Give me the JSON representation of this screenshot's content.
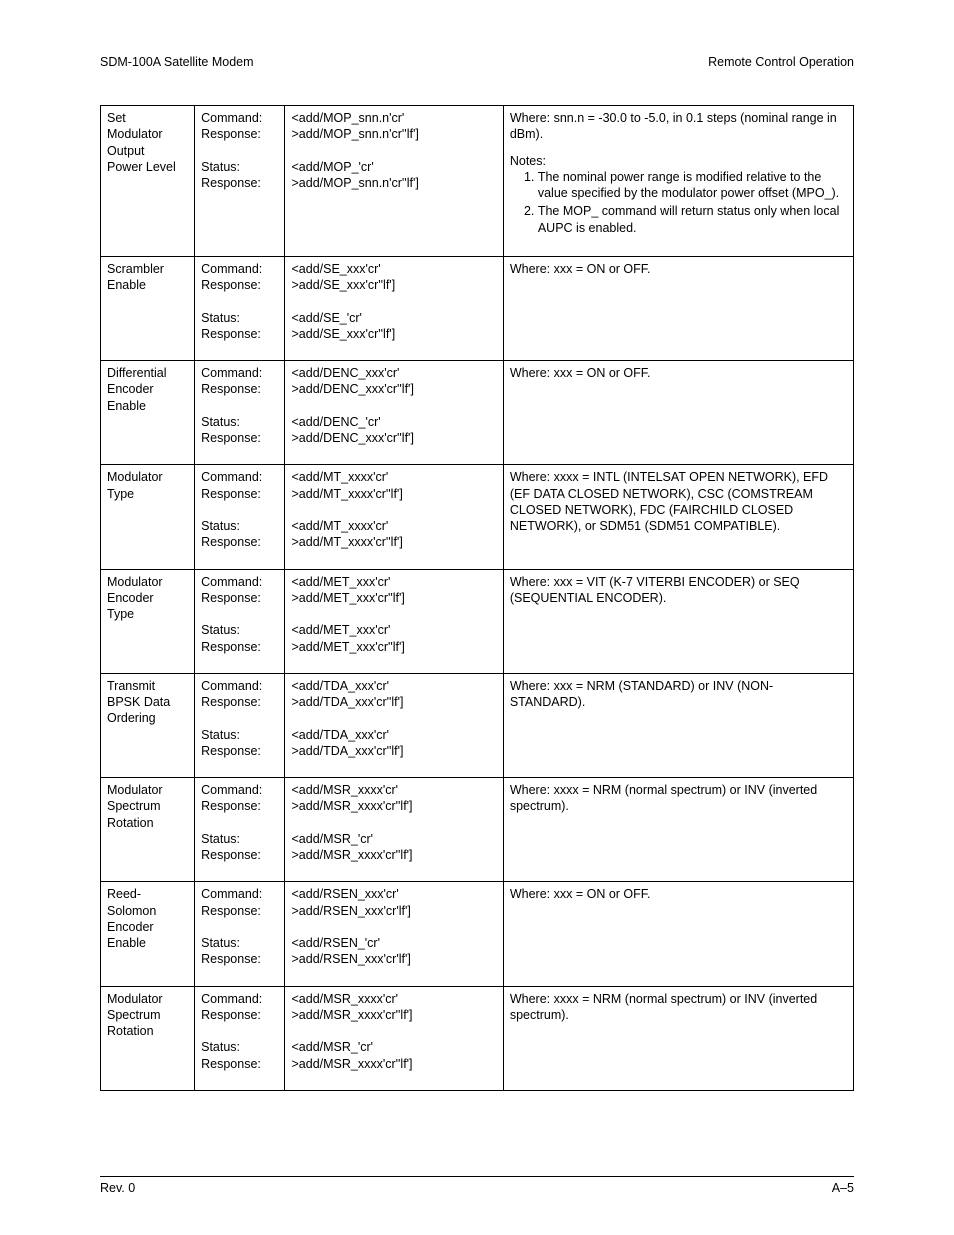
{
  "header": {
    "left": "SDM-100A Satellite Modem",
    "right": "Remote Control Operation"
  },
  "footer": {
    "left": "Rev. 0",
    "right": "A–5"
  },
  "label_keys": [
    "Command:",
    "Response:",
    "",
    "Status:",
    "Response:"
  ],
  "rows": [
    {
      "name": "Set\nModulator\nOutput\nPower Level",
      "syntax": "<add/MOP_snn.n'cr'\n>add/MOP_snn.n'cr''lf']\n\n<add/MOP_'cr'\n>add/MOP_snn.n'cr''lf']",
      "desc_pre": "Where: snn.n = -30.0 to -5.0, in 0.1 steps (nominal range in dBm).",
      "notes_title": "Notes:",
      "notes": [
        "The nominal power range is modified relative to the value specified by the modulator power offset (MPO_).",
        "The MOP_ command will return status only when local AUPC is enabled."
      ]
    },
    {
      "name": "Scrambler\nEnable",
      "syntax": "<add/SE_xxx'cr'\n>add/SE_xxx'cr''lf']\n\n<add/SE_'cr'\n>add/SE_xxx'cr''lf']",
      "desc_pre": "Where: xxx = ON or OFF."
    },
    {
      "name": "Differential\nEncoder\nEnable",
      "syntax": "<add/DENC_xxx'cr'\n>add/DENC_xxx'cr''lf']\n\n<add/DENC_'cr'\n>add/DENC_xxx'cr''lf']",
      "desc_pre": "Where: xxx = ON or OFF."
    },
    {
      "name": "Modulator\nType",
      "syntax": "<add/MT_xxxx'cr'\n>add/MT_xxxx'cr''lf']\n\n<add/MT_xxxx'cr'\n>add/MT_xxxx'cr''lf']",
      "desc_pre": "Where: xxxx = INTL (INTELSAT OPEN NETWORK), EFD (EF DATA CLOSED NETWORK), CSC (COMSTREAM CLOSED NETWORK), FDC (FAIRCHILD CLOSED NETWORK), or SDM51 (SDM51 COMPATIBLE)."
    },
    {
      "name": "Modulator\nEncoder\nType",
      "syntax": "<add/MET_xxx'cr'\n>add/MET_xxx'cr''lf']\n\n<add/MET_xxx'cr'\n>add/MET_xxx'cr''lf']",
      "desc_pre": "Where: xxx = VIT (K-7 VITERBI ENCODER) or SEQ (SEQUENTIAL ENCODER)."
    },
    {
      "name": "Transmit\nBPSK Data\nOrdering",
      "syntax": "<add/TDA_xxx'cr'\n>add/TDA_xxx'cr''lf']\n\n<add/TDA_xxx'cr'\n>add/TDA_xxx'cr''lf']",
      "desc_pre": "Where: xxx = NRM (STANDARD) or INV (NON-STANDARD)."
    },
    {
      "name": "Modulator\nSpectrum\nRotation",
      "syntax": "<add/MSR_xxxx'cr'\n>add/MSR_xxxx'cr''lf']\n\n<add/MSR_'cr'\n>add/MSR_xxxx'cr''lf']",
      "desc_pre": "Where: xxxx = NRM (normal spectrum) or INV (inverted spectrum)."
    },
    {
      "name": "Reed-\nSolomon\nEncoder\nEnable",
      "syntax": "<add/RSEN_xxx'cr'\n>add/RSEN_xxx'cr'lf']\n\n<add/RSEN_'cr'\n>add/RSEN_xxx'cr'lf']",
      "desc_pre": "Where: xxx = ON or OFF."
    },
    {
      "name": "Modulator\nSpectrum\nRotation",
      "syntax": "<add/MSR_xxxx'cr'\n>add/MSR_xxxx'cr''lf']\n\n<add/MSR_'cr'\n>add/MSR_xxxx'cr''lf']",
      "desc_pre": "Where: xxxx = NRM (normal spectrum) or INV (inverted spectrum)."
    }
  ]
}
